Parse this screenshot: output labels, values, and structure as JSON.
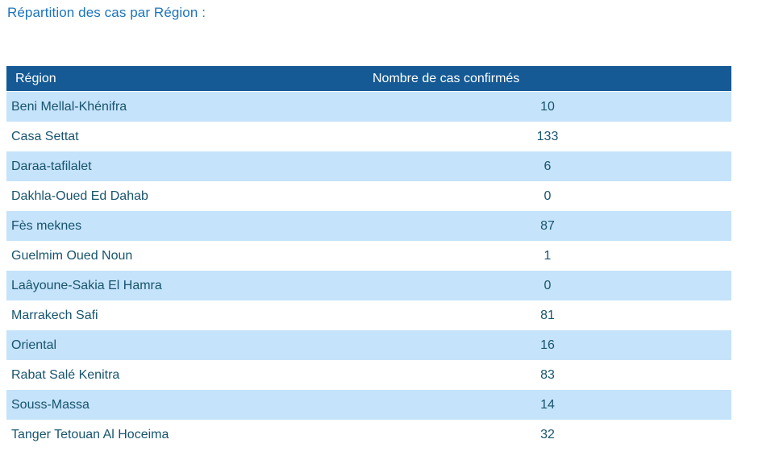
{
  "page": {
    "title": "Répartition des cas par Région :"
  },
  "table": {
    "columns": [
      {
        "label": "Région"
      },
      {
        "label": "Nombre de cas confirmés"
      }
    ],
    "rows": [
      {
        "region": "Beni Mellal-Khénifra",
        "cases": "10"
      },
      {
        "region": "Casa Settat",
        "cases": "133"
      },
      {
        "region": "Daraa-tafilalet",
        "cases": "6"
      },
      {
        "region": "Dakhla-Oued Ed Dahab",
        "cases": "0"
      },
      {
        "region": "Fès meknes",
        "cases": "87"
      },
      {
        "region": "Guelmim Oued Noun",
        "cases": "1"
      },
      {
        "region": "Laâyoune-Sakia El Hamra",
        "cases": "0"
      },
      {
        "region": "Marrakech Safi",
        "cases": "81"
      },
      {
        "region": "Oriental",
        "cases": "16"
      },
      {
        "region": "Rabat Salé Kenitra",
        "cases": "83"
      },
      {
        "region": "Souss-Massa",
        "cases": "14"
      },
      {
        "region": "Tanger Tetouan Al Hoceima",
        "cases": "32"
      }
    ]
  },
  "colors": {
    "page_bg": "#ffffff",
    "title": "#1b74bd",
    "header_bg": "#155a94",
    "header_text": "#ffffff",
    "row_alt_bg": "#c5e3fa",
    "row_bg": "#ffffff",
    "cell_text": "#17546e"
  }
}
